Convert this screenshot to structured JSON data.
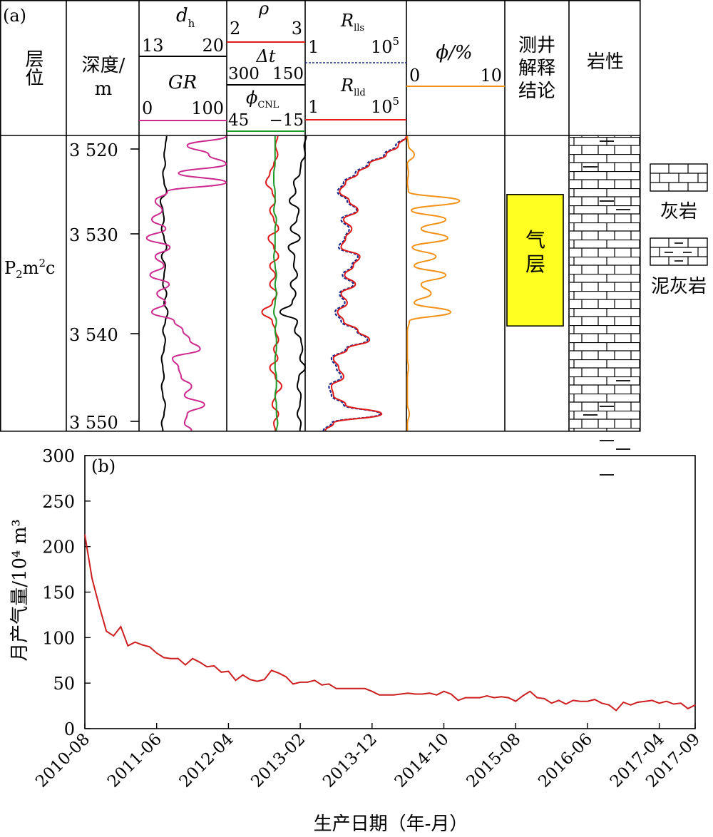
{
  "panel_a": {
    "label": "(a)",
    "headers": {
      "layer": "层位",
      "depth": [
        "深度/",
        "m"
      ],
      "dh": {
        "sym": "d",
        "sub": "h",
        "min": "13",
        "max": "20"
      },
      "gr": {
        "sym": "GR",
        "min": "0",
        "max": "100"
      },
      "rho": {
        "sym": "ρ",
        "min": "2",
        "max": "3"
      },
      "dt": {
        "sym": "Δt",
        "min": "300",
        "max": "150"
      },
      "phi_cnl": {
        "sym": "ϕ",
        "sub": "CNL",
        "min": "45",
        "max": "−15"
      },
      "rlls": {
        "sym": "R",
        "sub": "lls",
        "min": "1",
        "max": "10"
      },
      "rlld": {
        "sym": "R",
        "sub": "lld",
        "min": "1",
        "max": "10"
      },
      "exp": "5",
      "phi": {
        "label": "ϕ/%",
        "min": "0",
        "max": "10"
      },
      "interp": [
        "测井",
        "解释",
        "结论"
      ],
      "lith": "岩性"
    },
    "layer_name": {
      "a": "P",
      "b": "2",
      "c": "m",
      "d": "2",
      "e": "c"
    },
    "depth_ticks": [
      "3 520",
      "3 530",
      "3 540",
      "3 550"
    ],
    "depth_values": [
      3520,
      3530,
      3540,
      3550
    ],
    "depth_range": [
      3519,
      3550.8
    ],
    "gas_zone": {
      "label": [
        "气",
        "层"
      ],
      "top": 3525.3,
      "bottom": 3539.5,
      "color": "#ffff22"
    },
    "legend": [
      {
        "label": "灰岩",
        "pattern": "limestone"
      },
      {
        "label": "泥灰岩",
        "pattern": "marly-limestone"
      }
    ],
    "colors": {
      "gr": "#cc2a8e",
      "rho": "#dd1b1b",
      "cnl": "#1f9a2a",
      "rlls": "#1c2a8c",
      "rlld": "#dd1b1b",
      "phi": "#f39218",
      "black": "#000000"
    }
  },
  "panel_b": {
    "label": "(b)",
    "ylabel": "月产气量/10⁴ m³",
    "xlabel": "生产日期（年-月）"
  },
  "chart_data": {
    "type": "line",
    "title": "",
    "xlabel": "生产日期（年-月）",
    "ylabel": "月产气量/10⁴ m³",
    "ylim": [
      0,
      300
    ],
    "yticks": [
      0,
      50,
      100,
      150,
      200,
      250,
      300
    ],
    "xticks": [
      "2010-08",
      "2011-06",
      "2012-04",
      "2013-02",
      "2013-12",
      "2014-10",
      "2015-08",
      "2016-06",
      "2017-04",
      "2017-09"
    ],
    "x": [
      "2010-08",
      "2010-09",
      "2010-10",
      "2010-11",
      "2010-12",
      "2011-01",
      "2011-02",
      "2011-03",
      "2011-04",
      "2011-05",
      "2011-06",
      "2011-07",
      "2011-08",
      "2011-09",
      "2011-10",
      "2011-11",
      "2011-12",
      "2012-01",
      "2012-02",
      "2012-03",
      "2012-04",
      "2012-05",
      "2012-06",
      "2012-07",
      "2012-08",
      "2012-09",
      "2012-10",
      "2012-11",
      "2012-12",
      "2013-01",
      "2013-02",
      "2013-03",
      "2013-04",
      "2013-05",
      "2013-06",
      "2013-07",
      "2013-08",
      "2013-09",
      "2013-10",
      "2013-11",
      "2013-12",
      "2014-01",
      "2014-02",
      "2014-03",
      "2014-04",
      "2014-05",
      "2014-06",
      "2014-07",
      "2014-08",
      "2014-09",
      "2014-10",
      "2014-11",
      "2014-12",
      "2015-01",
      "2015-02",
      "2015-03",
      "2015-04",
      "2015-05",
      "2015-06",
      "2015-07",
      "2015-08",
      "2015-09",
      "2015-10",
      "2015-11",
      "2015-12",
      "2016-01",
      "2016-02",
      "2016-03",
      "2016-04",
      "2016-05",
      "2016-06",
      "2016-07",
      "2016-08",
      "2016-09",
      "2016-10",
      "2016-11",
      "2016-12",
      "2017-01",
      "2017-02",
      "2017-03",
      "2017-04",
      "2017-05",
      "2017-06",
      "2017-07",
      "2017-08",
      "2017-09"
    ],
    "series": [
      {
        "values": [
          213,
          165,
          135,
          107,
          102,
          112,
          91,
          95,
          92,
          90,
          83,
          78,
          77,
          77,
          70,
          77,
          73,
          68,
          69,
          62,
          63,
          53,
          59,
          54,
          52,
          54,
          64,
          61,
          57,
          49,
          51,
          51,
          53,
          48,
          49,
          44,
          44,
          44,
          44,
          44,
          41,
          37,
          37,
          37,
          38,
          39,
          38,
          38,
          39,
          37,
          41,
          38,
          31,
          34,
          34,
          34,
          36,
          34,
          35,
          34,
          30,
          36,
          41,
          34,
          33,
          28,
          31,
          27,
          31,
          30,
          30,
          32,
          28,
          26,
          20,
          29,
          26,
          29,
          30,
          31,
          28,
          30,
          27,
          28,
          22,
          26
        ]
      }
    ]
  },
  "log_data": {
    "depth": [
      3519,
      3520,
      3521,
      3522,
      3523,
      3524,
      3525,
      3526,
      3527,
      3528,
      3529,
      3530,
      3531,
      3532,
      3533,
      3534,
      3535,
      3536,
      3537,
      3538,
      3539,
      3540,
      3541,
      3542,
      3543,
      3544,
      3545,
      3546,
      3547,
      3548,
      3549,
      3550,
      3550.8
    ],
    "dh": [
      15.2,
      15.1,
      15.0,
      15.1,
      14.9,
      15.0,
      15.2,
      14.7,
      14.9,
      15.0,
      14.8,
      15.0,
      15.2,
      14.8,
      15.1,
      15.0,
      14.9,
      15.2,
      15.0,
      15.3,
      15.1,
      14.9,
      15.1,
      15.0,
      14.8,
      14.9,
      15.0,
      14.8,
      14.9,
      15.1,
      15.0,
      14.8,
      14.9
    ],
    "gr": [
      100,
      55,
      80,
      100,
      45,
      100,
      32,
      18,
      26,
      14,
      30,
      8,
      35,
      18,
      28,
      12,
      34,
      20,
      30,
      14,
      40,
      50,
      58,
      70,
      38,
      45,
      48,
      60,
      52,
      75,
      55,
      52,
      60
    ],
    "rho": [
      2.65,
      2.62,
      2.65,
      2.6,
      2.55,
      2.5,
      2.58,
      2.62,
      2.55,
      2.6,
      2.66,
      2.53,
      2.6,
      2.66,
      2.55,
      2.62,
      2.55,
      2.64,
      2.58,
      2.45,
      2.58,
      2.62,
      2.66,
      2.6,
      2.65,
      2.55,
      2.62,
      2.7,
      2.62,
      2.58,
      2.66,
      2.6,
      2.62
    ],
    "dt": [
      148,
      152,
      150,
      158,
      160,
      172,
      168,
      180,
      162,
      166,
      178,
      160,
      182,
      170,
      172,
      165,
      178,
      168,
      175,
      198,
      165,
      170,
      158,
      155,
      160,
      150,
      162,
      165,
      158,
      160,
      165,
      158,
      160
    ],
    "cnl": [
      8,
      8,
      8,
      8,
      9,
      9,
      8,
      8,
      9,
      7,
      8,
      8,
      8,
      9,
      8,
      7,
      8,
      7,
      8,
      9,
      7,
      8,
      7,
      7,
      8,
      8,
      7,
      7,
      8,
      7,
      7,
      6,
      7
    ],
    "rlls": [
      100000,
      30000,
      8000,
      1200,
      300,
      80,
      40,
      120,
      350,
      60,
      150,
      90,
      45,
      400,
      200,
      70,
      240,
      50,
      90,
      30,
      60,
      350,
      1200,
      100,
      20,
      35,
      60,
      15,
      20,
      80,
      5000,
      20,
      8
    ],
    "rlld": [
      100000,
      40000,
      10000,
      1500,
      400,
      100,
      50,
      150,
      400,
      80,
      200,
      100,
      60,
      500,
      240,
      90,
      300,
      60,
      120,
      40,
      80,
      400,
      1500,
      120,
      25,
      45,
      80,
      20,
      25,
      100,
      6000,
      25,
      10
    ],
    "phi": [
      0.1,
      0.2,
      0.8,
      0.1,
      0.2,
      0.1,
      0.2,
      5.4,
      0.5,
      4.0,
      1.5,
      4.2,
      0.6,
      3.0,
      0.8,
      4.0,
      1.5,
      2.5,
      0.8,
      4.5,
      0.3,
      0.1,
      0.1,
      0.1,
      0.1,
      0.2,
      0.1,
      0.1,
      0.1,
      0.1,
      0.3,
      0.1,
      0.1
    ]
  }
}
